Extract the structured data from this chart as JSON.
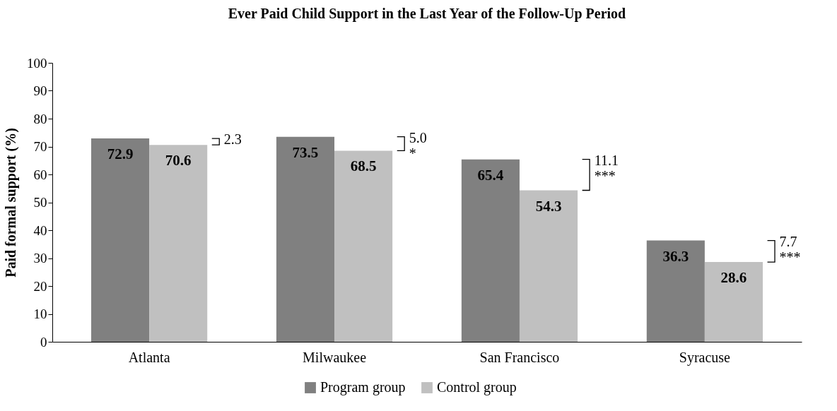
{
  "chart_data": {
    "type": "bar",
    "title": "Ever Paid Child Support in the Last Year of the Follow-Up Period",
    "ylabel": "Paid formal support (%)",
    "categories": [
      "Atlanta",
      "Milwaukee",
      "San Francisco",
      "Syracuse"
    ],
    "series": [
      {
        "name": "Program group",
        "color": "#808080",
        "values": [
          72.9,
          73.5,
          65.4,
          36.3
        ]
      },
      {
        "name": "Control group",
        "color": "#c0c0c0",
        "values": [
          70.6,
          68.5,
          54.3,
          28.6
        ]
      }
    ],
    "ylim": [
      0,
      100
    ],
    "yticks": [
      0,
      10,
      20,
      30,
      40,
      50,
      60,
      70,
      80,
      90,
      100
    ],
    "data_labels": true,
    "legend": "bottom",
    "annotations": [
      "2.3",
      "5.0\n*",
      "11.1\n***",
      "7.7\n***"
    ]
  }
}
